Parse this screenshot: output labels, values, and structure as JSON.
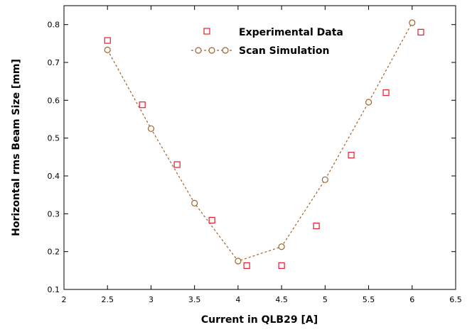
{
  "chart_data": {
    "type": "scatter",
    "title": "",
    "xlabel": "Current in QLB29 [A]",
    "ylabel": "Horizontal rms Beam Size [mm]",
    "xlim": [
      2,
      6.5
    ],
    "ylim": [
      0.1,
      0.85
    ],
    "xticks": [
      "2",
      "2.5",
      "3",
      "3.5",
      "4",
      "4.5",
      "5",
      "5.5",
      "6",
      "6.5"
    ],
    "yticks": [
      "0.1",
      "0.2",
      "0.3",
      "0.4",
      "0.5",
      "0.6",
      "0.7",
      "0.8"
    ],
    "grid": false,
    "legend_position": "top-center",
    "series": [
      {
        "name": "Experimental Data",
        "marker": "square",
        "color": "#e8192c",
        "x": [
          2.5,
          2.9,
          3.3,
          3.7,
          4.1,
          4.5,
          4.9,
          5.3,
          5.7,
          6.1
        ],
        "y": [
          0.758,
          0.588,
          0.43,
          0.283,
          0.163,
          0.163,
          0.268,
          0.455,
          0.62,
          0.78
        ]
      },
      {
        "name": "Scan Simulation",
        "marker": "circle",
        "line": "dashed",
        "color": "#a0622a",
        "x": [
          2.5,
          3.0,
          3.5,
          4.0,
          4.5,
          5.0,
          5.5,
          6.0
        ],
        "y": [
          0.733,
          0.525,
          0.328,
          0.175,
          0.213,
          0.39,
          0.595,
          0.805
        ]
      }
    ]
  }
}
